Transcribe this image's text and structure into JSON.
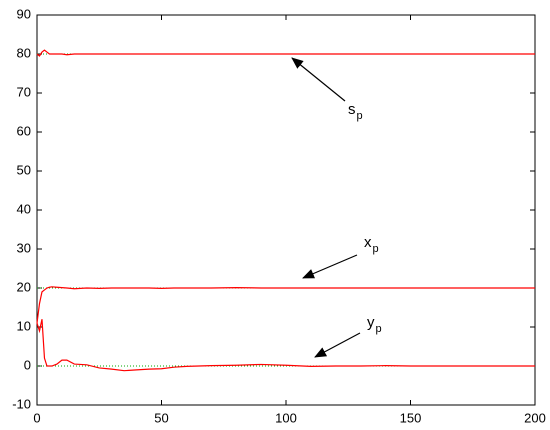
{
  "chart_data": {
    "type": "line",
    "x": [
      0,
      1,
      2,
      3,
      4,
      5,
      6,
      8,
      10,
      12,
      15,
      20,
      25,
      30,
      35,
      40,
      45,
      50,
      55,
      60,
      70,
      80,
      90,
      100,
      110,
      120,
      130,
      140,
      150,
      160,
      170,
      180,
      190,
      200
    ],
    "series": [
      {
        "color": "#ff0000",
        "values": [
          80,
          79.5,
          80.5,
          81,
          80.5,
          80,
          80,
          80,
          80,
          79.8,
          80,
          80,
          80,
          80,
          80,
          80,
          80,
          80,
          80,
          80,
          80,
          80,
          80,
          80,
          80,
          80,
          80,
          80,
          80,
          80,
          80,
          80,
          80,
          80
        ]
      },
      {
        "color": "#ff0000",
        "values": [
          11,
          16,
          19,
          19.5,
          20,
          20.2,
          20.3,
          20.2,
          20.1,
          20,
          19.8,
          20,
          19.9,
          20,
          20,
          20,
          20,
          19.9,
          20,
          20,
          20,
          20.1,
          20,
          20,
          20,
          20,
          20,
          20,
          20,
          20,
          20,
          20,
          20,
          20
        ]
      },
      {
        "color": "#ff0000",
        "values": [
          11,
          9,
          12,
          2,
          0,
          0,
          0,
          0.5,
          1.5,
          1.5,
          0.5,
          0.3,
          -0.5,
          -0.8,
          -1.2,
          -1,
          -0.8,
          -0.7,
          -0.3,
          -0.1,
          0.1,
          0.2,
          0.4,
          0.2,
          -0.1,
          0,
          0,
          0.1,
          0,
          0,
          0,
          0,
          0,
          0
        ]
      }
    ],
    "reference_lines": {
      "color": "#00aa00",
      "values": [
        80,
        20,
        0
      ]
    },
    "xlim": [
      0,
      200
    ],
    "xticks": [
      0,
      50,
      100,
      150,
      200
    ],
    "ylim": [
      -10,
      90
    ],
    "yticks": [
      -10,
      0,
      10,
      20,
      30,
      40,
      50,
      60,
      70,
      80,
      90
    ],
    "grid": false,
    "annotations": [
      {
        "text": "s",
        "subscript": "p"
      },
      {
        "text": "x",
        "subscript": "p"
      },
      {
        "text": "y",
        "subscript": "p"
      }
    ]
  }
}
